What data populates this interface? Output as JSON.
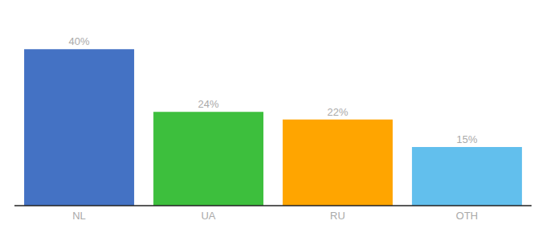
{
  "chart_data": {
    "type": "bar",
    "categories": [
      "NL",
      "UA",
      "RU",
      "OTH"
    ],
    "values": [
      40,
      24,
      22,
      15
    ],
    "value_labels": [
      "40%",
      "24%",
      "22%",
      "15%"
    ],
    "data_labels": true,
    "colors": [
      "#4472C4",
      "#3DBF3D",
      "#FFA500",
      "#62BFED"
    ],
    "ylim": [
      0,
      46
    ],
    "tick_labels": "x",
    "grid": false
  }
}
